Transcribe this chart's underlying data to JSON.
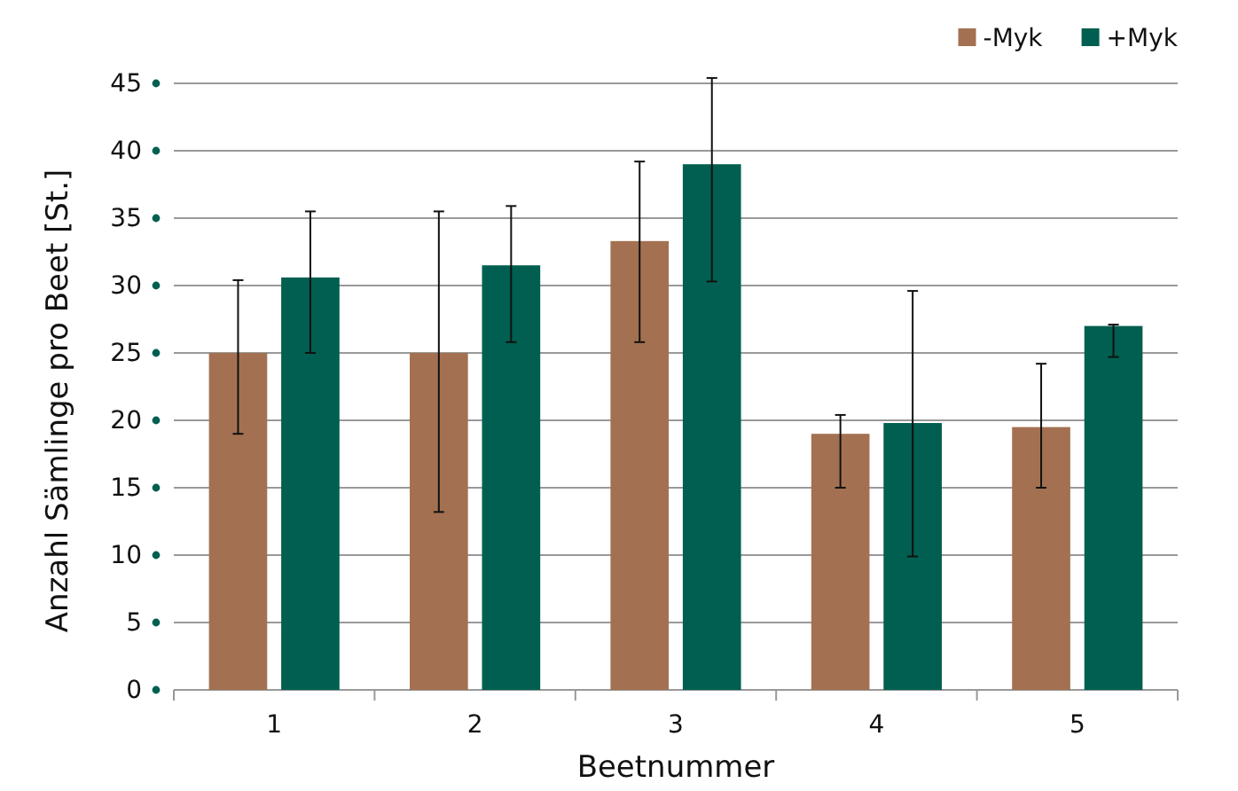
{
  "chart_data": {
    "type": "bar",
    "xlabel": "Beetnummer",
    "ylabel": "Anzahl Sämlinge pro Beet [St.]",
    "categories": [
      "1",
      "2",
      "3",
      "4",
      "5"
    ],
    "series": [
      {
        "name": "-Myk",
        "color": "#a37151",
        "values": [
          25,
          25,
          33.3,
          19,
          19.5
        ],
        "errors": [
          [
            19,
            30.4
          ],
          [
            13.2,
            35.5
          ],
          [
            25.8,
            39.2
          ],
          [
            15,
            20.4
          ],
          [
            15,
            24.2
          ]
        ]
      },
      {
        "name": "+Myk",
        "color": "#005f50",
        "values": [
          30.6,
          31.5,
          39,
          19.8,
          27
        ],
        "errors": [
          [
            25,
            35.5
          ],
          [
            25.8,
            35.9
          ],
          [
            30.3,
            45.4
          ],
          [
            9.9,
            29.6
          ],
          [
            24.7,
            27.1
          ]
        ]
      }
    ],
    "ylim": [
      0,
      45
    ],
    "yticks": [
      0,
      5,
      10,
      15,
      20,
      25,
      30,
      35,
      40,
      45
    ],
    "grid": "y",
    "legend": "top right"
  }
}
